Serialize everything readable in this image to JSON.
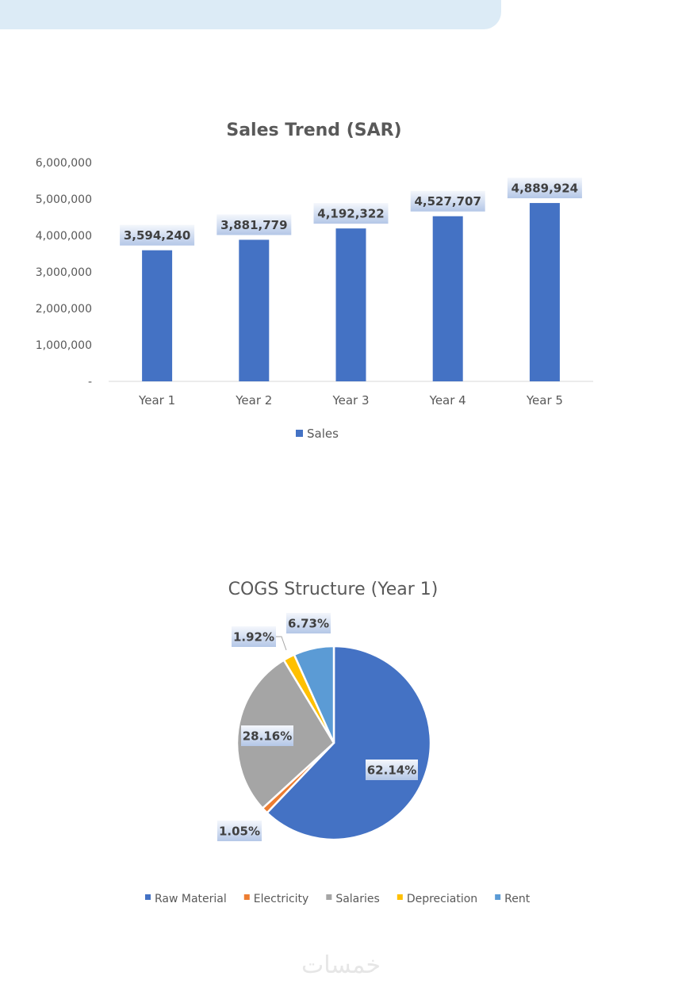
{
  "watermark": "خمسات",
  "chart_data": [
    {
      "type": "bar",
      "title": "Sales Trend (SAR)",
      "categories": [
        "Year 1",
        "Year 2",
        "Year 3",
        "Year 4",
        "Year 5"
      ],
      "series": [
        {
          "name": "Sales",
          "values": [
            3594240,
            3881779,
            4192322,
            4527707,
            4889924
          ],
          "color": "#4472c4"
        }
      ],
      "data_labels": [
        "3,594,240",
        "3,881,779",
        "4,192,322",
        "4,527,707",
        "4,889,924"
      ],
      "ylim": [
        0,
        6000000
      ],
      "yticks": [
        0,
        1000000,
        2000000,
        3000000,
        4000000,
        5000000,
        6000000
      ],
      "ytick_labels": [
        "-",
        "1,000,000",
        "2,000,000",
        "3,000,000",
        "4,000,000",
        "5,000,000",
        "6,000,000"
      ],
      "xlabel": "",
      "ylabel": "",
      "grid": false,
      "legend": "bottom"
    },
    {
      "type": "pie",
      "title": "COGS Structure (Year 1)",
      "slices": [
        {
          "label": "Raw Material",
          "value": 62.14,
          "text": "62.14%",
          "color": "#4472c4"
        },
        {
          "label": "Electricity",
          "value": 1.05,
          "text": "1.05%",
          "color": "#ed7d31"
        },
        {
          "label": "Salaries",
          "value": 28.16,
          "text": "28.16%",
          "color": "#a5a5a5"
        },
        {
          "label": "Depreciation",
          "value": 1.92,
          "text": "1.92%",
          "color": "#ffc000"
        },
        {
          "label": "Rent",
          "value": 6.73,
          "text": "6.73%",
          "color": "#5b9bd5"
        }
      ],
      "legend": "bottom"
    }
  ]
}
